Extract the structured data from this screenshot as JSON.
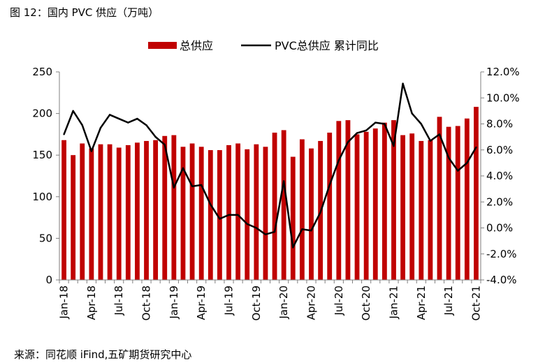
{
  "figure_title": "图 12：国内 PVC 供应（万吨）",
  "source": "来源：同花顺 iFind,五矿期货研究中心",
  "colors": {
    "bar": "#c00000",
    "line": "#000000"
  },
  "chart_data": {
    "type": "bar+line",
    "title": "国内 PVC 供应（万吨）",
    "legend_position": "top",
    "grid": false,
    "categories": [
      "Jan-18",
      "Feb-18",
      "Mar-18",
      "Apr-18",
      "May-18",
      "Jun-18",
      "Jul-18",
      "Aug-18",
      "Sep-18",
      "Oct-18",
      "Nov-18",
      "Dec-18",
      "Jan-19",
      "Feb-19",
      "Mar-19",
      "Apr-19",
      "May-19",
      "Jun-19",
      "Jul-19",
      "Aug-19",
      "Sep-19",
      "Oct-19",
      "Nov-19",
      "Dec-19",
      "Jan-20",
      "Feb-20",
      "Mar-20",
      "Apr-20",
      "May-20",
      "Jun-20",
      "Jul-20",
      "Aug-20",
      "Sep-20",
      "Oct-20",
      "Nov-20",
      "Dec-20",
      "Jan-21",
      "Feb-21",
      "Mar-21",
      "Apr-21",
      "May-21",
      "Jun-21",
      "Jul-21",
      "Aug-21",
      "Sep-21",
      "Oct-21"
    ],
    "x_tick_labels": [
      "Jan-18",
      "Apr-18",
      "Jul-18",
      "Oct-18",
      "Jan-19",
      "Apr-19",
      "Jul-19",
      "Oct-19",
      "Jan-20",
      "Apr-20",
      "Jul-20",
      "Oct-20",
      "Jan-21",
      "Apr-21",
      "Jul-21",
      "Oct-21"
    ],
    "series": [
      {
        "name": "总供应",
        "type": "bar",
        "axis": "left",
        "values": [
          168,
          150,
          164,
          158,
          163,
          163,
          159,
          162,
          165,
          167,
          168,
          173,
          174,
          160,
          164,
          160,
          156,
          156,
          162,
          164,
          157,
          163,
          160,
          177,
          180,
          148,
          169,
          158,
          167,
          177,
          191,
          192,
          175,
          178,
          182,
          189,
          192,
          174,
          176,
          167,
          168,
          196,
          184,
          185,
          194,
          208
        ]
      },
      {
        "name": "PVC总供应 累计同比",
        "type": "line",
        "axis": "right",
        "values": [
          7.2,
          9.0,
          7.9,
          5.9,
          7.7,
          8.7,
          8.4,
          8.1,
          8.4,
          7.9,
          7.0,
          6.4,
          3.1,
          4.6,
          3.2,
          3.3,
          1.8,
          0.7,
          1.0,
          1.0,
          0.3,
          0.0,
          -0.5,
          -0.3,
          3.6,
          -1.5,
          -0.1,
          -0.2,
          1.2,
          3.3,
          5.2,
          6.6,
          7.3,
          7.5,
          8.1,
          8.0,
          6.3,
          11.1,
          8.8,
          8.0,
          6.7,
          7.2,
          5.4,
          4.4,
          5.0,
          6.2
        ]
      }
    ],
    "y_left": {
      "min": 0,
      "max": 250,
      "ticks": [
        "0",
        "50",
        "100",
        "150",
        "200",
        "250"
      ]
    },
    "y_right": {
      "min": -4,
      "max": 12,
      "ticks": [
        "-4.0%",
        "-2.0%",
        "0.0%",
        "2.0%",
        "4.0%",
        "6.0%",
        "8.0%",
        "10.0%",
        "12.0%"
      ]
    }
  }
}
